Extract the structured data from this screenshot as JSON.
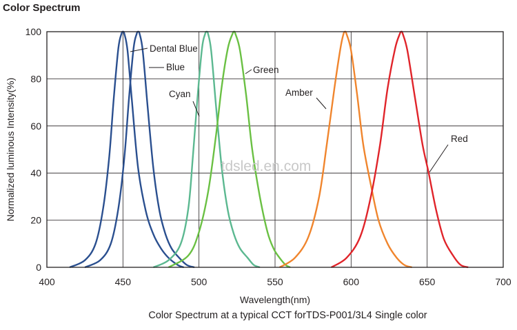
{
  "title": "Color Spectrum",
  "caption": "Color Spectrum at a typical CCT forTDS-P001/3L4 Single color",
  "watermark": "tdsled.en.com",
  "chart_data": {
    "type": "line",
    "xlabel": "Wavelength(nm)",
    "ylabel": "Normalized luminous Intensity(%)",
    "xlim": [
      400,
      700
    ],
    "ylim": [
      0,
      100
    ],
    "xticks": [
      "400",
      "450",
      "500",
      "550",
      "600",
      "650",
      "700"
    ],
    "yticks": [
      "0",
      "20",
      "40",
      "60",
      "80",
      "100"
    ],
    "grid": true,
    "series": [
      {
        "name": "Dental Blue",
        "color": "#2a4f8f",
        "x": [
          415,
          425,
          432,
          437,
          441,
          444,
          447,
          449,
          450,
          451,
          453,
          456,
          460,
          465,
          470,
          475,
          480,
          486,
          490
        ],
        "y": [
          0,
          3,
          10,
          25,
          47,
          72,
          93,
          99,
          100,
          99,
          92,
          70,
          42,
          24,
          14,
          8,
          4,
          1,
          0
        ]
      },
      {
        "name": "Blue",
        "color": "#2a4f8f",
        "x": [
          425,
          435,
          442,
          447,
          451,
          454,
          457,
          459,
          460,
          461,
          463,
          466,
          470,
          474,
          478,
          482,
          487,
          492,
          497
        ],
        "y": [
          0,
          3,
          10,
          25,
          47,
          72,
          93,
          99,
          100,
          99,
          92,
          70,
          42,
          24,
          14,
          8,
          4,
          1,
          0
        ]
      },
      {
        "name": "Cyan",
        "color": "#5bb890",
        "x": [
          470,
          480,
          488,
          493,
          496,
          499,
          502,
          504,
          505,
          506,
          508,
          511,
          515,
          519,
          523,
          527,
          532,
          536,
          540
        ],
        "y": [
          0,
          3,
          10,
          25,
          47,
          72,
          93,
          99,
          100,
          99,
          92,
          70,
          42,
          24,
          14,
          8,
          4,
          1,
          0
        ]
      },
      {
        "name": "Green",
        "color": "#6ac043",
        "x": [
          480,
          493,
          500,
          506,
          511,
          515,
          519,
          522,
          523,
          524,
          527,
          531,
          535,
          540,
          545,
          549,
          553,
          557,
          560
        ],
        "y": [
          0,
          5,
          15,
          32,
          55,
          77,
          93,
          99,
          100,
          99,
          92,
          73,
          50,
          30,
          15,
          8,
          4,
          1,
          0
        ]
      },
      {
        "name": "Amber",
        "color": "#f0852d",
        "x": [
          553,
          563,
          572,
          579,
          584,
          589,
          593,
          595,
          596,
          597,
          600,
          604,
          608,
          613,
          618,
          624,
          630,
          635,
          640
        ],
        "y": [
          0,
          4,
          13,
          30,
          52,
          76,
          93,
          99,
          100,
          99,
          92,
          73,
          52,
          35,
          20,
          10,
          4,
          1,
          0
        ]
      },
      {
        "name": "Red",
        "color": "#e0242a",
        "x": [
          587,
          597,
          606,
          613,
          619,
          624,
          629,
          632,
          633,
          634,
          637,
          642,
          647,
          651,
          656,
          661,
          667,
          672,
          677
        ],
        "y": [
          0,
          4,
          13,
          30,
          52,
          76,
          93,
          99,
          100,
          99,
          92,
          72,
          52,
          40,
          24,
          12,
          5,
          1,
          0
        ]
      }
    ],
    "annotations": [
      {
        "text": "Dental Blue",
        "color": "#231f20"
      },
      {
        "text": "Blue",
        "color": "#231f20"
      },
      {
        "text": "Cyan",
        "color": "#231f20"
      },
      {
        "text": "Green",
        "color": "#231f20"
      },
      {
        "text": "Amber",
        "color": "#231f20"
      },
      {
        "text": "Red",
        "color": "#231f20"
      }
    ]
  }
}
